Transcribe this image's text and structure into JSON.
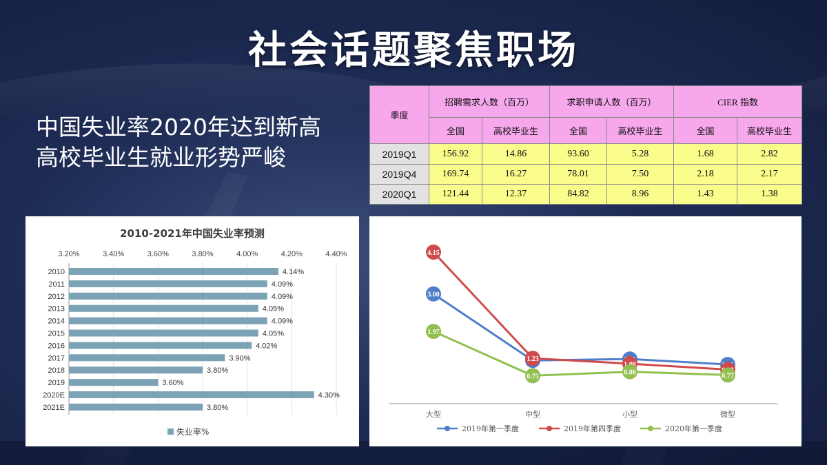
{
  "slide": {
    "title": "社会话题聚焦职场",
    "headline_line1": "中国失业率2020年达到新高",
    "headline_line2": "高校毕业生就业形势严峻"
  },
  "table": {
    "col_quarter": "季度",
    "group_demand": "招聘需求人数（百万）",
    "group_supply": "求职申请人数（百万）",
    "group_cier": "CIER 指数",
    "sub_all": "全国",
    "sub_grad": "高校毕业生",
    "rows": [
      {
        "quarter": "2019Q1",
        "demand_all": "156.92",
        "demand_grad": "14.86",
        "supply_all": "93.60",
        "supply_grad": "5.28",
        "cier_all": "1.68",
        "cier_grad": "2.82"
      },
      {
        "quarter": "2019Q4",
        "demand_all": "169.74",
        "demand_grad": "16.27",
        "supply_all": "78.01",
        "supply_grad": "7.50",
        "cier_all": "2.18",
        "cier_grad": "2.17"
      },
      {
        "quarter": "2020Q1",
        "demand_all": "121.44",
        "demand_grad": "12.37",
        "supply_all": "84.82",
        "supply_grad": "8.96",
        "cier_all": "1.43",
        "cier_grad": "1.38"
      }
    ]
  },
  "chart_data": [
    {
      "type": "bar",
      "orientation": "horizontal",
      "title": "2010-2021年中国失业率预测",
      "categories": [
        "2010",
        "2011",
        "2012",
        "2013",
        "2014",
        "2015",
        "2016",
        "2017",
        "2018",
        "2019",
        "2020E",
        "2021E"
      ],
      "values": [
        4.14,
        4.09,
        4.09,
        4.05,
        4.09,
        4.05,
        4.02,
        3.9,
        3.8,
        3.6,
        4.3,
        3.8
      ],
      "value_labels": [
        "4.14%",
        "4.09%",
        "4.09%",
        "4.05%",
        "4.09%",
        "4.05%",
        "4.02%",
        "3.90%",
        "3.80%",
        "3.60%",
        "4.30%",
        "3.80%"
      ],
      "xlim": [
        3.2,
        4.4
      ],
      "xticks": [
        "3.20%",
        "3.40%",
        "3.60%",
        "3.80%",
        "4.00%",
        "4.20%",
        "4.40%"
      ],
      "legend": [
        "失业率%"
      ],
      "legend_position": "bottom",
      "grid": true,
      "color": "#7ba3b5"
    },
    {
      "type": "line",
      "title": "",
      "categories": [
        "大型",
        "中型",
        "小型",
        "微型"
      ],
      "series": [
        {
          "name": "2019年第一季度",
          "values": [
            3.0,
            1.17,
            1.21,
            1.06
          ],
          "labels": [
            "3.00",
            "1.17",
            "1.21",
            "1.06"
          ],
          "color": "#4f7ec8"
        },
        {
          "name": "2019年第四季度",
          "values": [
            4.15,
            1.23,
            1.08,
            0.92
          ],
          "labels": [
            "4.15",
            "1.23",
            "1.08",
            "0.92"
          ],
          "color": "#cf4b4b"
        },
        {
          "name": "2020年第一季度",
          "values": [
            1.97,
            0.75,
            0.86,
            0.77
          ],
          "labels": [
            "1.97",
            "0.75",
            "0.86",
            "0.77"
          ],
          "color": "#92c050"
        }
      ],
      "legend_position": "bottom",
      "grid": false
    }
  ]
}
